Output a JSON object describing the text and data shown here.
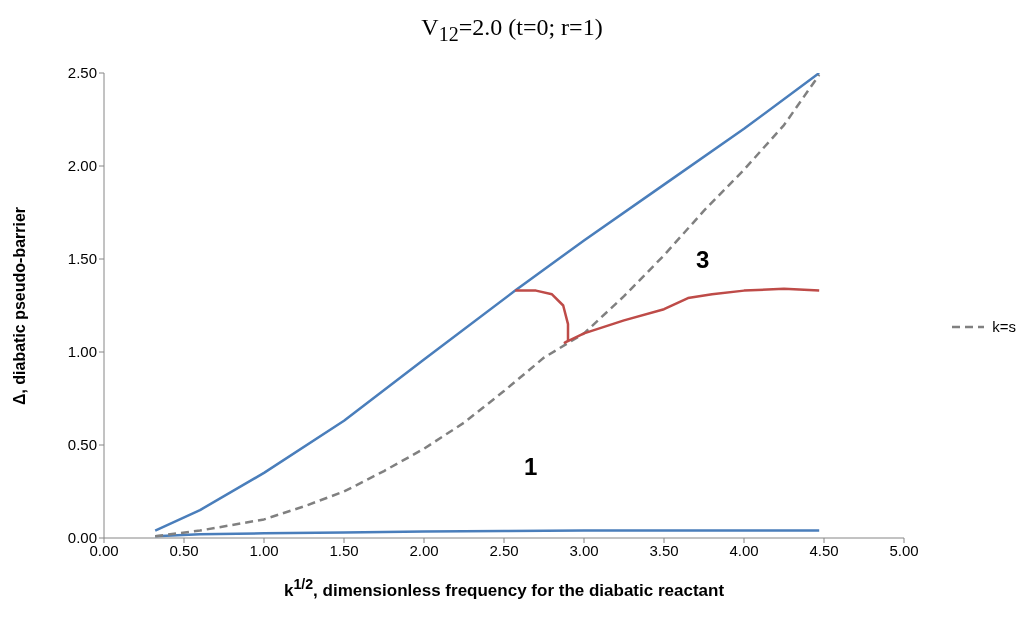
{
  "chart_data": {
    "type": "line",
    "title": "V$_{12}$=2.0 (t=0; r=1)",
    "xlabel": "k$^{1/2}$, dimensionless frequency for the diabatic reactant",
    "ylabel": "Δ, diabatic pseudo-barrier",
    "series": [
      {
        "color": "#4a7ebb",
        "x": [
          0.32,
          0.6,
          1.0,
          1.5,
          2.0,
          2.57,
          3.0,
          3.5,
          4.0,
          4.47
        ],
        "values": [
          0.04,
          0.15,
          0.35,
          0.63,
          0.96,
          1.33,
          1.6,
          1.9,
          2.2,
          2.5
        ]
      },
      {
        "color": "#4a7ebb",
        "x": [
          0.32,
          0.6,
          1.0,
          1.5,
          2.0,
          2.5,
          3.0,
          3.5,
          4.0,
          4.47
        ],
        "values": [
          0.01,
          0.02,
          0.025,
          0.03,
          0.035,
          0.038,
          0.04,
          0.04,
          0.04,
          0.04
        ]
      },
      {
        "name": "k=s",
        "color": "#808080",
        "line_style": "dashed",
        "x": [
          0.32,
          0.6,
          1.0,
          1.25,
          1.5,
          1.75,
          2.0,
          2.25,
          2.5,
          2.75,
          3.0,
          3.25,
          3.5,
          3.75,
          4.0,
          4.25,
          4.47
        ],
        "values": [
          0.01,
          0.04,
          0.1,
          0.17,
          0.25,
          0.36,
          0.48,
          0.62,
          0.79,
          0.97,
          1.1,
          1.3,
          1.52,
          1.76,
          1.98,
          2.22,
          2.49
        ]
      },
      {
        "color": "#be4b48",
        "x": [
          2.57,
          2.7,
          2.8,
          2.87,
          2.9,
          2.9,
          2.88,
          3.0,
          3.25,
          3.5,
          3.65,
          3.8,
          4.0,
          4.25,
          4.47
        ],
        "values": [
          1.33,
          1.33,
          1.31,
          1.25,
          1.15,
          1.06,
          1.05,
          1.1,
          1.17,
          1.23,
          1.29,
          1.31,
          1.33,
          1.34,
          1.33
        ]
      }
    ],
    "xlim": [
      0,
      5
    ],
    "xticks": [
      {
        "value": 0,
        "label": "0.00"
      },
      {
        "value": 0.5,
        "label": "0.50"
      },
      {
        "value": 1,
        "label": "1.00"
      },
      {
        "value": 1.5,
        "label": "1.50"
      },
      {
        "value": 2,
        "label": "2.00"
      },
      {
        "value": 2.5,
        "label": "2.50"
      },
      {
        "value": 3,
        "label": "3.00"
      },
      {
        "value": 3.5,
        "label": "3.50"
      },
      {
        "value": 4,
        "label": "4.00"
      },
      {
        "value": 4.5,
        "label": "4.50"
      },
      {
        "value": 5,
        "label": "5.00"
      }
    ],
    "ylim": [
      0,
      2.5
    ],
    "yticks": [
      {
        "value": 0,
        "label": "0.00"
      },
      {
        "value": 0.5,
        "label": "0.50"
      },
      {
        "value": 1,
        "label": "1.00"
      },
      {
        "value": 1.5,
        "label": "1.50"
      },
      {
        "value": 2,
        "label": "2.00"
      },
      {
        "value": 2.5,
        "label": "2.50"
      }
    ],
    "annotations": [
      "3",
      "1"
    ],
    "grid": false,
    "legend": "right",
    "marker": "none"
  }
}
